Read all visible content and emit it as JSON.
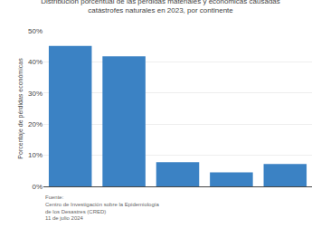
{
  "chart_data": {
    "type": "bar",
    "title": "Distribución porcentual de las pérdidas materiales y económicas causadas\ncatástrofes naturales en 2023, por continente",
    "categories": [
      null,
      null,
      null,
      null,
      null
    ],
    "values": [
      45.1,
      41.8,
      7.8,
      4.5,
      7.2
    ],
    "color": "#3b82c4",
    "ylabel": "Porcentaje de pérdidas económicas",
    "ylim": [
      0,
      50
    ],
    "yticks": [
      {
        "value": 0,
        "label": "0%"
      },
      {
        "value": 10,
        "label": "10%"
      },
      {
        "value": 20,
        "label": "20%"
      },
      {
        "value": 30,
        "label": "30%"
      },
      {
        "value": 40,
        "label": "40%"
      },
      {
        "value": 50,
        "label": "50%"
      }
    ],
    "grid": true,
    "tick_labels": "y",
    "annotations": [
      "Fuente:\nCentro de Investigación sobre la Epidemiología\nde los Desastres (CRED)\n11 de julio 2024"
    ]
  }
}
